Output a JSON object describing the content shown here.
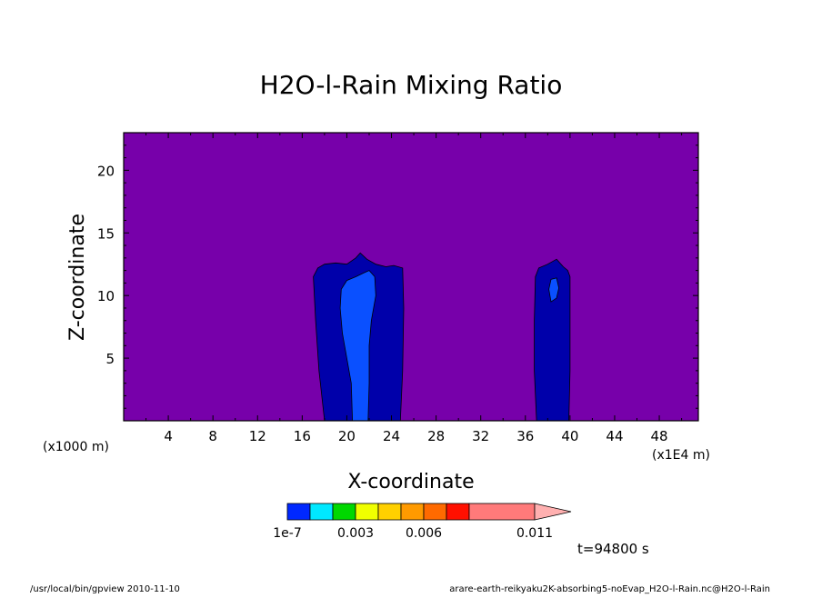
{
  "chart_data": {
    "type": "heatmap",
    "title": "H2O-l-Rain Mixing Ratio",
    "xlabel": "X-coordinate",
    "ylabel": "Z-coordinate",
    "x_unit": "(x1E4 m)",
    "y_unit": "(x1000 m)",
    "xlim": [
      0,
      51.5
    ],
    "ylim": [
      0,
      23
    ],
    "x_ticks": [
      4,
      8,
      12,
      16,
      20,
      24,
      28,
      32,
      36,
      40,
      44,
      48
    ],
    "y_ticks": [
      5,
      10,
      15,
      20
    ],
    "background_color": "#7700aa",
    "cells": [
      {
        "name": "cell-1-outer",
        "level": "1e-7",
        "color": "#0000aa",
        "polygon": [
          [
            18.0,
            0
          ],
          [
            17.5,
            4
          ],
          [
            17.2,
            8
          ],
          [
            17.0,
            11.5
          ],
          [
            17.4,
            12.2
          ],
          [
            18.0,
            12.5
          ],
          [
            19.0,
            12.6
          ],
          [
            20.0,
            12.5
          ],
          [
            20.8,
            13.0
          ],
          [
            21.2,
            13.4
          ],
          [
            21.8,
            12.9
          ],
          [
            22.6,
            12.5
          ],
          [
            23.5,
            12.3
          ],
          [
            24.2,
            12.4
          ],
          [
            25.0,
            12.2
          ],
          [
            25.1,
            9
          ],
          [
            25.0,
            4
          ],
          [
            24.8,
            0
          ]
        ]
      },
      {
        "name": "cell-1-inner",
        "level": "0.003",
        "color": "#0a50ff",
        "polygon": [
          [
            20.5,
            0
          ],
          [
            20.4,
            3
          ],
          [
            20.0,
            5
          ],
          [
            19.6,
            7
          ],
          [
            19.4,
            9
          ],
          [
            19.5,
            10.5
          ],
          [
            20.0,
            11.2
          ],
          [
            20.8,
            11.5
          ],
          [
            21.5,
            11.8
          ],
          [
            22.0,
            12.0
          ],
          [
            22.5,
            11.5
          ],
          [
            22.6,
            10
          ],
          [
            22.2,
            8
          ],
          [
            22.0,
            6
          ],
          [
            22.0,
            3
          ],
          [
            21.9,
            0
          ]
        ]
      },
      {
        "name": "cell-2-outer",
        "level": "1e-7",
        "color": "#0000aa",
        "polygon": [
          [
            37.0,
            0
          ],
          [
            36.8,
            4
          ],
          [
            36.8,
            8
          ],
          [
            36.9,
            11.5
          ],
          [
            37.2,
            12.2
          ],
          [
            38.0,
            12.5
          ],
          [
            38.8,
            12.9
          ],
          [
            39.4,
            12.3
          ],
          [
            39.8,
            12.0
          ],
          [
            40.0,
            11.5
          ],
          [
            40.0,
            8
          ],
          [
            40.0,
            4
          ],
          [
            39.9,
            0
          ]
        ]
      },
      {
        "name": "cell-2-inner",
        "level": "0.003",
        "color": "#0a50ff",
        "polygon": [
          [
            38.3,
            9.5
          ],
          [
            38.1,
            10.5
          ],
          [
            38.3,
            11.3
          ],
          [
            38.8,
            11.4
          ],
          [
            39.0,
            10.6
          ],
          [
            38.8,
            9.8
          ]
        ]
      }
    ],
    "colorbar": {
      "ticks": [
        "1e-7",
        "0.003",
        "0.006",
        "0.011"
      ],
      "colors": [
        "#0028ff",
        "#00e8ff",
        "#00d800",
        "#f0ff00",
        "#ffd000",
        "#ff9a00",
        "#ff6a00",
        "#ff1000",
        "#ff7a7a",
        "#ffb0b0"
      ]
    },
    "time_label": "t=94800 s"
  },
  "footer": {
    "left": "/usr/local/bin/gpview   2010-11-10",
    "right": "arare-earth-reikyaku2K-absorbing5-noEvap_H2O-l-Rain.nc@H2O-l-Rain"
  }
}
